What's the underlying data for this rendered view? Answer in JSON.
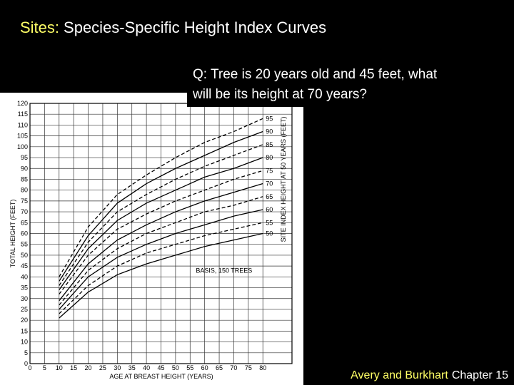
{
  "slide": {
    "title_prefix": "Sites:",
    "title": "Species-Specific Height Index Curves",
    "question": [
      "Q: Tree is 20 years old and 45 feet, what",
      "will be its height at 70 years?"
    ],
    "credit_source": "Avery and Burkhart",
    "credit_rest": "Chapter 15"
  },
  "chart_data": {
    "type": "line",
    "x_label": "AGE AT BREAST HEIGHT (YEARS)",
    "y_label": "TOTAL HEIGHT (FEET)",
    "y2_label": "SITE INDEX HEIGHT AT 50 YEARS (FEET)",
    "annotation": "BASIS, 150 TREES",
    "x": [
      10,
      20,
      30,
      40,
      50,
      60,
      70,
      80
    ],
    "series": [
      {
        "name": "50",
        "color": "#000000",
        "style": "solid",
        "values": [
          21,
          33,
          41,
          46,
          50,
          54,
          57,
          60
        ]
      },
      {
        "name": "55",
        "color": "#000000",
        "style": "dashed",
        "values": [
          23,
          36,
          45,
          51,
          55,
          59,
          62,
          65
        ]
      },
      {
        "name": "60",
        "color": "#000000",
        "style": "solid",
        "values": [
          25,
          40,
          49,
          55,
          60,
          64,
          68,
          71
        ]
      },
      {
        "name": "65",
        "color": "#000000",
        "style": "dashed",
        "values": [
          27,
          43,
          53,
          60,
          65,
          70,
          73,
          77
        ]
      },
      {
        "name": "70",
        "color": "#000000",
        "style": "solid",
        "values": [
          29,
          46,
          57,
          64,
          70,
          75,
          79,
          83
        ]
      },
      {
        "name": "75",
        "color": "#000000",
        "style": "dashed",
        "values": [
          32,
          50,
          62,
          69,
          75,
          80,
          85,
          89
        ]
      },
      {
        "name": "80",
        "color": "#000000",
        "style": "solid",
        "values": [
          34,
          53,
          66,
          74,
          80,
          86,
          90,
          95
        ]
      },
      {
        "name": "85",
        "color": "#000000",
        "style": "dashed",
        "values": [
          36,
          56,
          70,
          78,
          85,
          91,
          96,
          101
        ]
      },
      {
        "name": "90",
        "color": "#000000",
        "style": "solid",
        "values": [
          38,
          59,
          74,
          83,
          90,
          96,
          102,
          107
        ]
      },
      {
        "name": "95",
        "color": "#000000",
        "style": "dashed",
        "values": [
          40,
          63,
          78,
          87,
          95,
          102,
          107,
          113
        ]
      }
    ],
    "xlim": [
      0,
      90
    ],
    "ylim": [
      0,
      120
    ],
    "xticks": [
      0,
      5,
      10,
      15,
      20,
      25,
      30,
      35,
      40,
      45,
      50,
      55,
      60,
      65,
      70,
      75,
      80
    ],
    "yticks": [
      0,
      5,
      10,
      15,
      20,
      25,
      30,
      35,
      40,
      45,
      50,
      55,
      60,
      65,
      70,
      75,
      80,
      85,
      90,
      95,
      100,
      105,
      110,
      115,
      120
    ],
    "grid": true
  }
}
